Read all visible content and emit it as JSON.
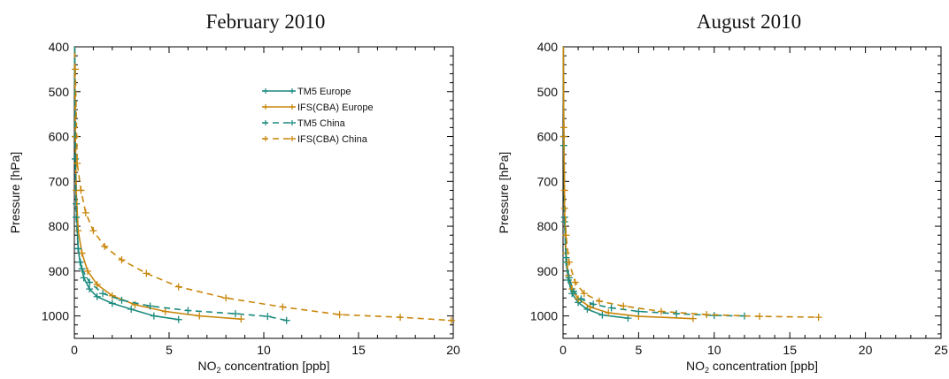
{
  "chart_data": [
    {
      "type": "line",
      "title": "February 2010",
      "xlabel_pre": "NO",
      "xlabel_sub": "2",
      "xlabel_post": " concentration [ppb]",
      "ylabel": "Pressure [hPa]",
      "xlim": [
        0,
        20
      ],
      "ylim": [
        400,
        1050
      ],
      "y_inverted": true,
      "xticks": [
        0,
        5,
        10,
        15,
        20
      ],
      "yticks": [
        400,
        500,
        600,
        700,
        800,
        900,
        1000
      ],
      "legend": "top-right",
      "series": [
        {
          "name": "TM5 Europe",
          "color": "#1a8a7e",
          "dash": false,
          "x": [
            0.02,
            0.05,
            0.1,
            0.2,
            0.3,
            0.5,
            0.8,
            1.2,
            2.0,
            3.0,
            4.2,
            5.5
          ],
          "y": [
            400,
            600,
            750,
            850,
            880,
            915,
            940,
            957,
            972,
            985,
            1000,
            1008
          ]
        },
        {
          "name": "IFS(CBA) Europe",
          "color": "#c8860a",
          "dash": false,
          "x": [
            0.02,
            0.05,
            0.1,
            0.2,
            0.4,
            0.7,
            1.2,
            2.0,
            3.2,
            4.8,
            6.6,
            8.8
          ],
          "y": [
            400,
            600,
            720,
            810,
            860,
            900,
            930,
            955,
            975,
            990,
            1000,
            1007
          ]
        },
        {
          "name": "TM5 China",
          "color": "#1a8a7e",
          "dash": true,
          "x": [
            0.02,
            0.05,
            0.1,
            0.2,
            0.4,
            0.8,
            1.5,
            2.5,
            4.0,
            6.0,
            8.5,
            10.2,
            11.2
          ],
          "y": [
            400,
            650,
            780,
            850,
            895,
            925,
            950,
            965,
            978,
            988,
            995,
            1001,
            1010
          ]
        },
        {
          "name": "IFS(CBA) China",
          "color": "#c8860a",
          "dash": true,
          "x": [
            0.05,
            0.15,
            0.35,
            0.6,
            1.0,
            1.6,
            2.5,
            3.8,
            5.5,
            8.0,
            11.0,
            14.0,
            17.2,
            19.9
          ],
          "y": [
            450,
            660,
            720,
            770,
            810,
            845,
            875,
            905,
            935,
            960,
            980,
            997,
            1003,
            1010
          ]
        }
      ]
    },
    {
      "type": "line",
      "title": "August 2010",
      "xlabel_pre": "NO",
      "xlabel_sub": "2",
      "xlabel_post": " concentration [ppb]",
      "ylabel": "Pressure [hPa]",
      "xlim": [
        0,
        25
      ],
      "ylim": [
        400,
        1050
      ],
      "y_inverted": true,
      "xticks": [
        0,
        5,
        10,
        15,
        20,
        25
      ],
      "yticks": [
        400,
        500,
        600,
        700,
        800,
        900,
        1000
      ],
      "series": [
        {
          "name": "TM5 Europe",
          "color": "#1a8a7e",
          "dash": false,
          "x": [
            0.02,
            0.05,
            0.1,
            0.2,
            0.35,
            0.6,
            1.0,
            1.6,
            2.6,
            4.3
          ],
          "y": [
            400,
            600,
            780,
            880,
            920,
            950,
            970,
            985,
            998,
            1005
          ]
        },
        {
          "name": "IFS(CBA) Europe",
          "color": "#c8860a",
          "dash": false,
          "x": [
            0.02,
            0.05,
            0.1,
            0.2,
            0.35,
            0.6,
            1.0,
            1.8,
            3.0,
            5.0,
            8.6
          ],
          "y": [
            400,
            600,
            760,
            860,
            910,
            940,
            962,
            980,
            993,
            1001,
            1006
          ]
        },
        {
          "name": "TM5 China",
          "color": "#1a8a7e",
          "dash": true,
          "x": [
            0.02,
            0.05,
            0.1,
            0.2,
            0.4,
            0.7,
            1.2,
            2.0,
            3.2,
            5.0,
            7.5,
            10.0,
            12.0
          ],
          "y": [
            400,
            620,
            790,
            870,
            915,
            945,
            962,
            974,
            982,
            990,
            995,
            999,
            1000
          ]
        },
        {
          "name": "IFS(CBA) China",
          "color": "#c8860a",
          "dash": true,
          "x": [
            0.02,
            0.05,
            0.1,
            0.2,
            0.4,
            0.8,
            1.4,
            2.4,
            4.0,
            6.5,
            9.5,
            13.0,
            16.9
          ],
          "y": [
            400,
            580,
            720,
            820,
            880,
            925,
            950,
            967,
            978,
            990,
            997,
            1001,
            1003
          ]
        }
      ]
    }
  ]
}
